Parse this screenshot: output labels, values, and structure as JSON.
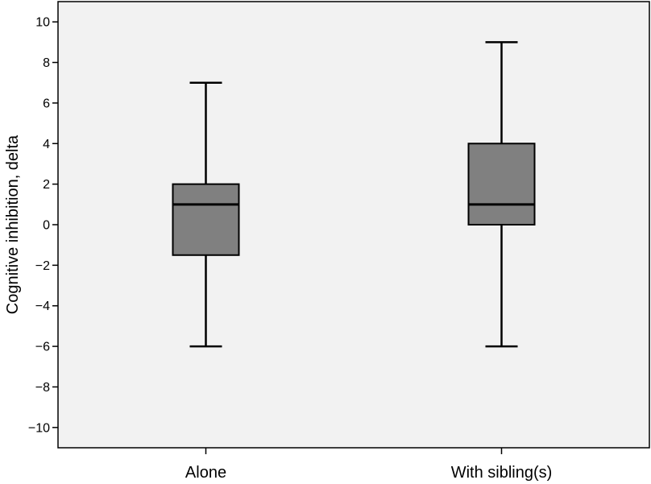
{
  "chart_data": {
    "type": "box",
    "title": "",
    "xlabel": "",
    "ylabel": "Cognitive inhibition, delta",
    "ylim": [
      -11,
      11
    ],
    "yticks": [
      10,
      8,
      6,
      4,
      2,
      0,
      -2,
      -4,
      -6,
      -8,
      -10
    ],
    "ytick_labels": [
      "10",
      "8",
      "6",
      "4",
      "2",
      "0",
      "−2",
      "−4",
      "−6",
      "−8",
      "−10"
    ],
    "categories": [
      "Alone",
      "With sibling(s)"
    ],
    "boxes": [
      {
        "category": "Alone",
        "whisker_low": -6,
        "q1": -1.5,
        "median": 1,
        "q3": 2,
        "whisker_high": 7
      },
      {
        "category": "With sibling(s)",
        "whisker_low": -6,
        "q1": 0,
        "median": 1,
        "q3": 4,
        "whisker_high": 9
      }
    ],
    "grid": false,
    "colors": {
      "plot_background": "#f2f2f2",
      "box_fill": "#808080",
      "line": "#000000"
    }
  }
}
